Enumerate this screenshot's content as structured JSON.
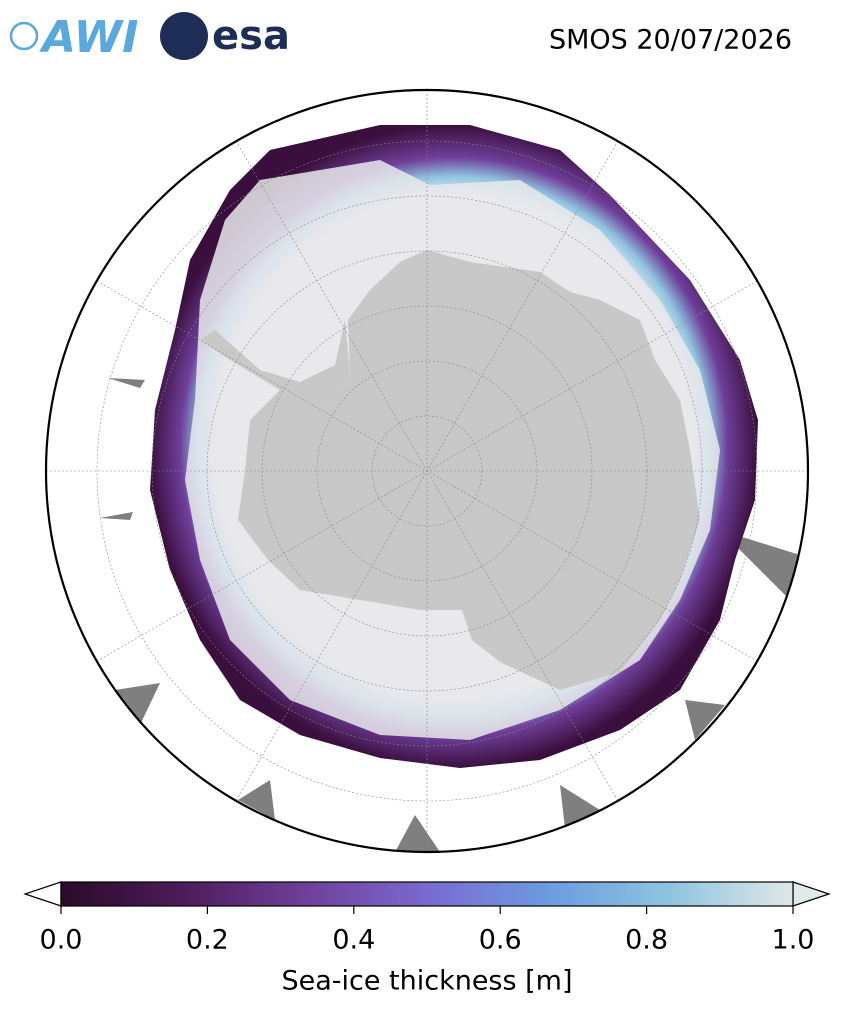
{
  "logos": [
    "AWI",
    "esa"
  ],
  "title": "SMOS 20/07/2026",
  "colorbar": {
    "label": "Sea-ice thickness [m]",
    "xlim": [
      0,
      1
    ],
    "xticks": [
      {
        "value": 0,
        "label": "0.0"
      },
      0.2,
      0.4,
      0.6,
      0.8,
      {
        "value": 1,
        "label": "1.0"
      }
    ],
    "colormap": [
      "#2a0a2a",
      "#4d1c5a",
      "#6f3f9a",
      "#7a6ad0",
      "#6c9be0",
      "#8fc4e0",
      "#dfe8e8"
    ]
  }
}
